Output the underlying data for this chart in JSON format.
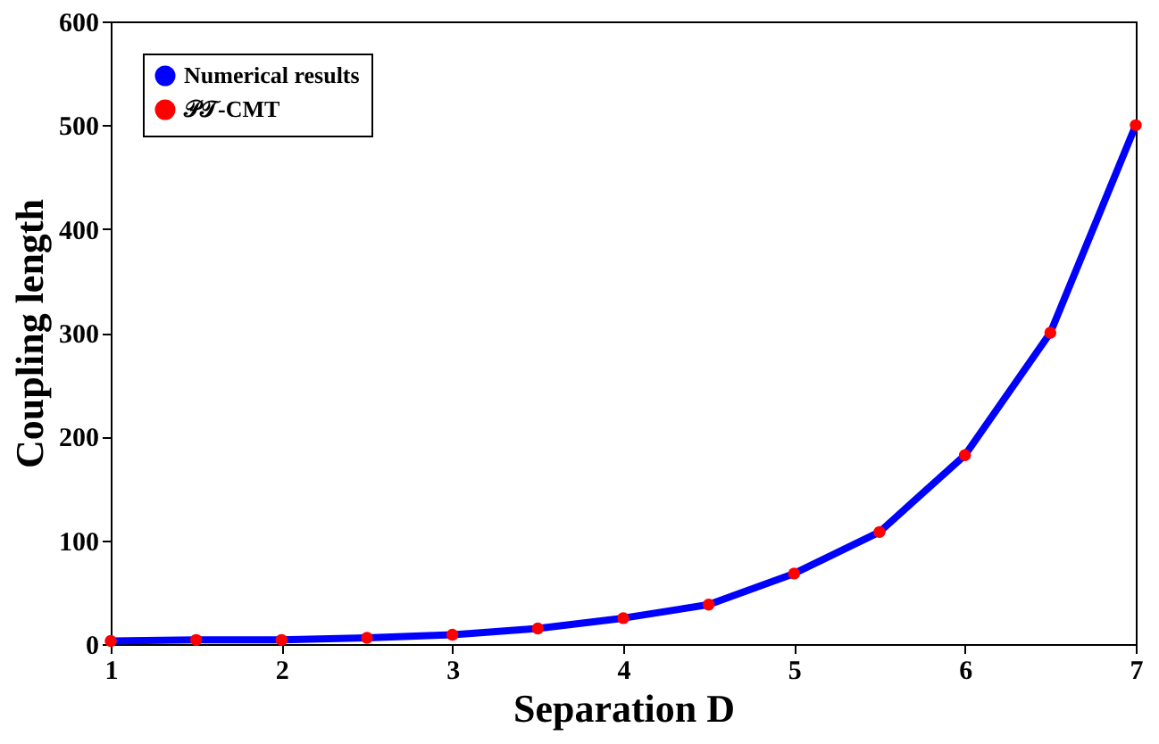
{
  "chart_data": {
    "type": "line",
    "xlabel": "Separation D",
    "ylabel": "Coupling length",
    "x": [
      1,
      1.5,
      2,
      2.5,
      3,
      3.5,
      4,
      4.5,
      5,
      5.5,
      6,
      6.5,
      7
    ],
    "series": [
      {
        "name": "Numerical results",
        "color": "#0000ff",
        "values": [
          3,
          4,
          4,
          6,
          9,
          15,
          25,
          38,
          68,
          108,
          182,
          300,
          500
        ]
      },
      {
        "name": "𝒫𝒯-CMT",
        "type": "scatter",
        "marker": "circle",
        "color": "#ff0000",
        "values": [
          3,
          4,
          4,
          6,
          9,
          15,
          25,
          38,
          68,
          108,
          182,
          300,
          500
        ]
      }
    ],
    "xlim": [
      1,
      7
    ],
    "xticks": [
      1,
      2,
      3,
      4,
      5,
      6,
      7
    ],
    "ylim": [
      0,
      600
    ],
    "yticks": [
      0,
      100,
      200,
      300,
      400,
      500,
      600
    ],
    "grid": false,
    "legend": "top left",
    "line_style": "solid"
  }
}
